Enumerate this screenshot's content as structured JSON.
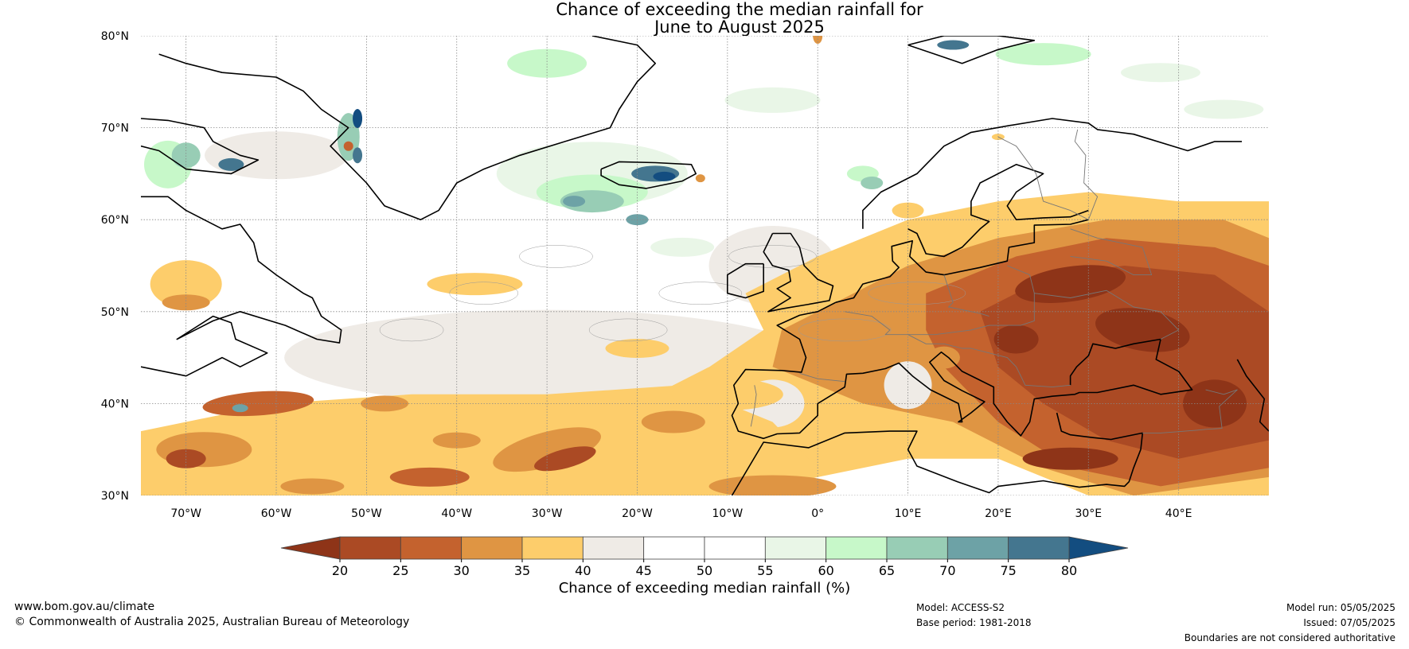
{
  "title": {
    "line1": "Chance of exceeding the median rainfall for",
    "line2": "June to August 2025"
  },
  "map": {
    "region": "Europe and North Atlantic",
    "lat_range": [
      30,
      80
    ],
    "lon_range": [
      -75,
      50
    ],
    "lat_labels": [
      "80°N",
      "70°N",
      "60°N",
      "50°N",
      "40°N",
      "30°N"
    ],
    "lon_labels": [
      "70°W",
      "60°W",
      "50°W",
      "40°W",
      "30°W",
      "20°W",
      "10°W",
      "0°",
      "10°E",
      "20°E",
      "30°E",
      "40°E"
    ]
  },
  "colorbar": {
    "label": "Chance of exceeding median rainfall (%)",
    "ticks": [
      "20",
      "25",
      "30",
      "35",
      "40",
      "45",
      "50",
      "55",
      "60",
      "65",
      "70",
      "75",
      "80"
    ],
    "colors": {
      "below20": "#8e3418",
      "b20_25": "#ab4a24",
      "b25_30": "#c4622e",
      "b30_35": "#df9543",
      "b35_40": "#fdcd6b",
      "b40_45": "#efebe6",
      "b45_50": "#ffffff",
      "b50_55": "#ffffff",
      "b55_60": "#e9f6e7",
      "b60_65": "#c7f8c9",
      "b65_70": "#98cdb5",
      "b70_75": "#6da2a6",
      "b75_80": "#44768f",
      "above80": "#134d80"
    }
  },
  "footer": {
    "website": "www.bom.gov.au/climate",
    "copyright": "© Commonwealth of Australia 2025, Australian Bureau of Meteorology",
    "model": "Model: ACCESS-S2",
    "base_period": "Base period: 1981-2018",
    "model_run": "Model run: 05/05/2025",
    "issued": "Issued: 07/05/2025",
    "disclaimer": "Boundaries are not considered authoritative"
  }
}
